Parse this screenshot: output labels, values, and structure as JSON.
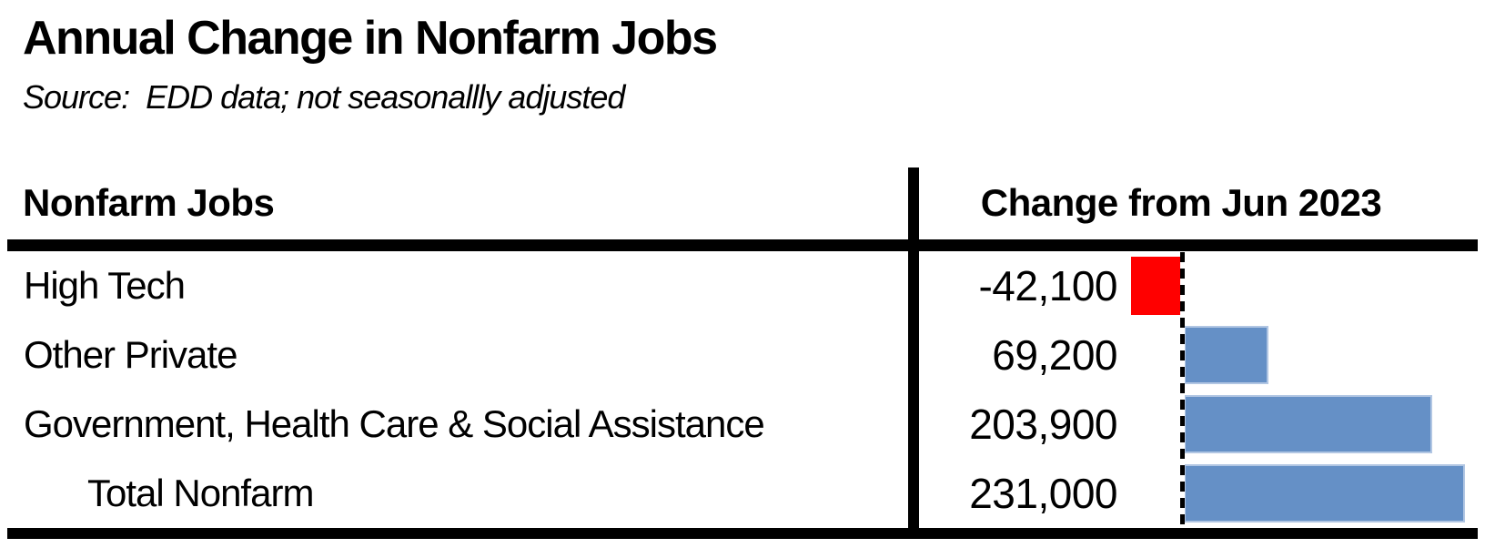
{
  "title": "Annual Change in Nonfarm Jobs",
  "source_note": "Source:  EDD data; not seasonallly adjusted",
  "table": {
    "left_header": "Nonfarm Jobs",
    "right_header": "Change from Jun 2023"
  },
  "colors": {
    "text": "#000000",
    "rule_lines": "#000000",
    "negative_bar": "#FF0000",
    "positive_bar": "#6590C6",
    "background": "#FFFFFF"
  },
  "chart_data": {
    "type": "bar",
    "orientation": "horizontal",
    "title": "Annual Change in Nonfarm Jobs",
    "subtitle": "Source:  EDD data; not seasonallly adjusted",
    "value_column_header": "Change from Jun 2023",
    "category_column_header": "Nonfarm Jobs",
    "categories": [
      "High Tech",
      "Other Private",
      "Government, Health Care & Social Assistance",
      "Total Nonfarm"
    ],
    "values": [
      -42100,
      69200,
      203900,
      231000
    ],
    "rows": [
      {
        "label": "High Tech",
        "value": -42100,
        "value_label": "-42,100",
        "indent": false
      },
      {
        "label": "Other Private",
        "value": 69200,
        "value_label": "69,200",
        "indent": false
      },
      {
        "label": "Government, Health Care & Social Assistance",
        "value": 203900,
        "value_label": "203,900",
        "indent": false
      },
      {
        "label": "Total Nonfarm",
        "value": 231000,
        "value_label": "231,000",
        "indent": true
      }
    ],
    "baseline": 0,
    "zero_line_style": "dashed",
    "bar_colors": {
      "negative": "#FF0000",
      "positive": "#6590C6"
    },
    "legend": "none",
    "grid": "off"
  }
}
